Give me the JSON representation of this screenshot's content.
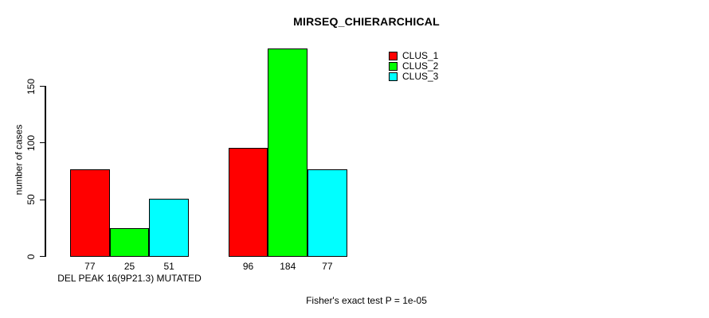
{
  "title": "MIRSEQ_CHIERARCHICAL",
  "chart_data": {
    "type": "bar",
    "title": "MIRSEQ_CHIERARCHICAL",
    "categories": [
      "DEL PEAK 16(9P21.3) MUTATED",
      ""
    ],
    "series": [
      {
        "name": "CLUS_1",
        "color": "#ff0000",
        "values": [
          77,
          96
        ]
      },
      {
        "name": "CLUS_2",
        "color": "#00ff00",
        "values": [
          25,
          184
        ]
      },
      {
        "name": "CLUS_3",
        "color": "#00ffff",
        "values": [
          51,
          77
        ]
      }
    ],
    "ylabel": "number of cases",
    "xlabel": "",
    "yticks": [
      0,
      50,
      100,
      150
    ],
    "ylim": [
      0,
      190
    ],
    "bar_value_labels_shown": true,
    "legend": {
      "position": "top-right",
      "entries": [
        "CLUS_1",
        "CLUS_2",
        "CLUS_3"
      ]
    },
    "grid": false,
    "bar_border_color": "#000000"
  },
  "footer": {
    "note": "Fisher's exact test P = 1e-05"
  }
}
